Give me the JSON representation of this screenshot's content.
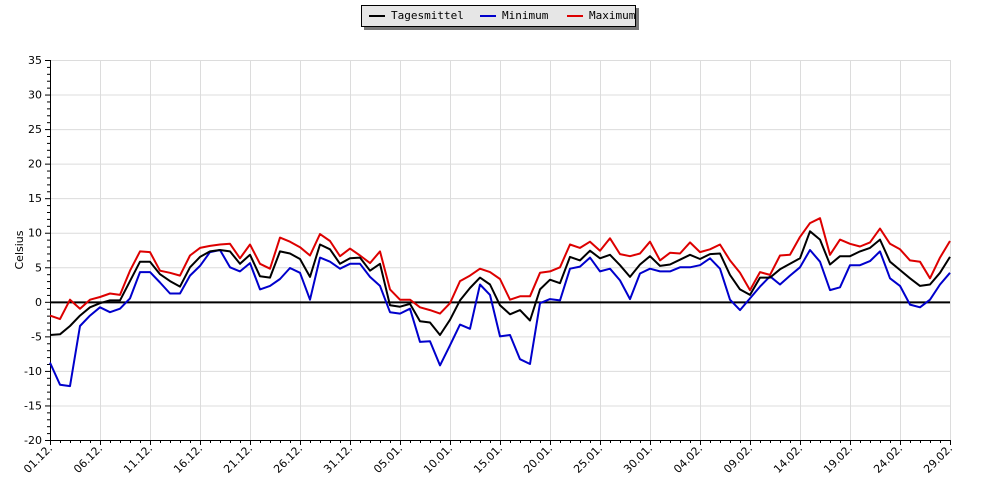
{
  "chart_data": {
    "type": "line",
    "title": "",
    "xlabel": "",
    "ylabel": "Celsius",
    "ylim": [
      -20,
      35
    ],
    "y_ticks": [
      35,
      30,
      25,
      20,
      15,
      10,
      5,
      0,
      -5,
      -10,
      -15,
      -20
    ],
    "x_tick_labels": [
      "01.12.",
      "06.12.",
      "11.12.",
      "16.12.",
      "21.12.",
      "26.12.",
      "31.12.",
      "05.01.",
      "10.01.",
      "15.01.",
      "20.01.",
      "25.01.",
      "30.01.",
      "04.02.",
      "09.02.",
      "14.02.",
      "19.02.",
      "24.02.",
      "29.02."
    ],
    "grid": true,
    "legend_position": "top-center",
    "series": [
      {
        "name": "Tagesmittel",
        "color": "#000000",
        "values": [
          -4.8,
          -4.7,
          -3.5,
          -2.0,
          -0.8,
          -0.2,
          0.2,
          0.2,
          3.0,
          5.8,
          5.8,
          4.0,
          3.0,
          2.2,
          5.0,
          6.5,
          7.3,
          7.5,
          7.3,
          5.5,
          6.8,
          3.7,
          3.5,
          7.3,
          7.0,
          6.2,
          3.6,
          8.3,
          7.6,
          5.5,
          6.3,
          6.4,
          4.5,
          5.5,
          -0.5,
          -0.7,
          -0.3,
          -2.8,
          -3.0,
          -4.8,
          -2.6,
          0.2,
          2.0,
          3.5,
          2.5,
          -0.5,
          -1.8,
          -1.2,
          -2.7,
          1.8,
          3.2,
          2.7,
          6.5,
          6.0,
          7.4,
          6.3,
          6.8,
          5.3,
          3.6,
          5.4,
          6.6,
          5.2,
          5.4,
          6.1,
          6.8,
          6.2,
          6.9,
          7.0,
          3.9,
          1.8,
          1.0,
          3.5,
          3.5,
          4.7,
          5.5,
          6.3,
          10.2,
          9.0,
          5.4,
          6.6,
          6.6,
          7.3,
          7.8,
          9.0,
          5.8,
          4.6,
          3.4,
          2.3,
          2.5,
          4.2,
          6.5
        ]
      },
      {
        "name": "Minimum",
        "color": "#0000cc",
        "values": [
          -8.8,
          -12.0,
          -12.2,
          -3.5,
          -2.0,
          -0.8,
          -1.5,
          -1.0,
          0.5,
          4.3,
          4.3,
          2.8,
          1.2,
          1.2,
          3.8,
          5.2,
          7.2,
          7.5,
          5.0,
          4.4,
          5.6,
          1.8,
          2.3,
          3.3,
          4.9,
          4.2,
          0.3,
          6.4,
          5.8,
          4.8,
          5.5,
          5.5,
          3.6,
          2.3,
          -1.5,
          -1.7,
          -1.0,
          -5.8,
          -5.7,
          -9.2,
          -6.3,
          -3.3,
          -3.9,
          2.5,
          1.0,
          -5.0,
          -4.8,
          -8.3,
          -9.0,
          -0.2,
          0.4,
          0.2,
          4.8,
          5.1,
          6.4,
          4.4,
          4.8,
          3.1,
          0.4,
          4.1,
          4.8,
          4.4,
          4.4,
          5.0,
          5.0,
          5.3,
          6.3,
          4.8,
          0.3,
          -1.2,
          0.5,
          2.2,
          3.7,
          2.5,
          3.8,
          5.0,
          7.5,
          5.8,
          1.7,
          2.1,
          5.3,
          5.3,
          5.9,
          7.3,
          3.4,
          2.3,
          -0.4,
          -0.8,
          0.3,
          2.5,
          4.2
        ]
      },
      {
        "name": "Maximum",
        "color": "#dd0000",
        "values": [
          -2.0,
          -2.5,
          0.3,
          -1.0,
          0.3,
          0.7,
          1.2,
          1.0,
          4.5,
          7.3,
          7.2,
          4.5,
          4.2,
          3.8,
          6.7,
          7.8,
          8.1,
          8.3,
          8.4,
          6.3,
          8.3,
          5.5,
          4.8,
          9.3,
          8.7,
          7.9,
          6.7,
          9.8,
          8.8,
          6.6,
          7.7,
          6.7,
          5.6,
          7.3,
          1.8,
          0.3,
          0.3,
          -0.8,
          -1.2,
          -1.7,
          -0.2,
          3.0,
          3.8,
          4.8,
          4.3,
          3.3,
          0.3,
          0.8,
          0.8,
          4.2,
          4.4,
          5.0,
          8.3,
          7.8,
          8.7,
          7.4,
          9.2,
          6.9,
          6.6,
          7.0,
          8.7,
          6.0,
          7.1,
          7.0,
          8.6,
          7.2,
          7.6,
          8.3,
          6.0,
          4.2,
          1.7,
          4.3,
          3.9,
          6.7,
          6.8,
          9.4,
          11.4,
          12.1,
          6.8,
          9.0,
          8.4,
          8.0,
          8.6,
          10.6,
          8.4,
          7.6,
          6.0,
          5.8,
          3.4,
          6.4,
          8.8
        ]
      }
    ]
  }
}
